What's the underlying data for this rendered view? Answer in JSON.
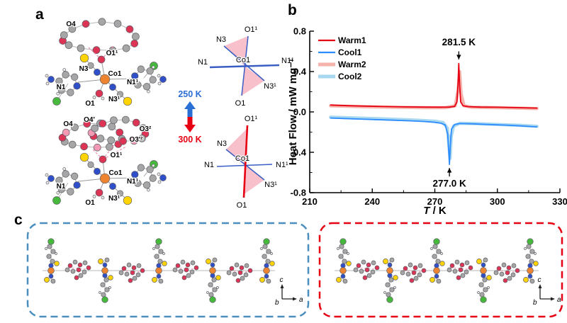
{
  "panel_labels": {
    "a": "a",
    "b": "b",
    "c": "c"
  },
  "panel_a": {
    "temperature_high": "250 K",
    "temperature_low": "300 K",
    "molecule_top": {
      "o4": "O4",
      "o1_top": "O1¹",
      "n3": "N3",
      "co1": "Co1",
      "n1": "N1",
      "n1_sym": "N1¹",
      "n3_sym": "N3¹",
      "o1": "O1"
    },
    "molecule_bottom": {
      "o4": "O4",
      "o4_prime": "O4'",
      "o3_sym": "O3²",
      "o3_prime_sym": "O3'²",
      "o1_top": "O1¹",
      "n1": "N1",
      "co1": "Co1",
      "n1_sym": "N1¹",
      "n3_sym": "N3¹",
      "o1": "O1"
    },
    "scheme_top": {
      "o1_top": "O1¹",
      "n3": "N3",
      "n1": "N1",
      "co1": "Co1",
      "n1_sym": "N1¹",
      "n3_sym": "N3¹",
      "o1": "O1"
    },
    "scheme_bottom": {
      "o1_top": "O1¹",
      "n3": "N3",
      "n1": "N1",
      "co1": "Co1",
      "n1_sym": "N1¹",
      "n3_sym": "N3¹",
      "o1": "O1"
    }
  },
  "chart_data": {
    "type": "line",
    "title": "",
    "xlabel_italic": "T",
    "xlabel_rest": " / K",
    "ylabel": "Heat Flow / mW mg⁻¹",
    "xlim": [
      210,
      330
    ],
    "ylim": [
      -0.8,
      0.8
    ],
    "xticks": [
      210,
      240,
      270,
      300,
      330
    ],
    "yticks": [
      -0.8,
      -0.4,
      0,
      0.4,
      0.8
    ],
    "xminor": [
      225,
      255,
      285,
      315
    ],
    "yminor": [
      -0.6,
      -0.2,
      0.2,
      0.6
    ],
    "legend_position": "top-left",
    "grid": false,
    "series": [
      {
        "name": "Warm1",
        "color": "#e60012",
        "lw": 1.8,
        "points": [
          [
            220,
            0.068
          ],
          [
            228,
            0.062
          ],
          [
            235,
            0.058
          ],
          [
            245,
            0.053
          ],
          [
            255,
            0.05
          ],
          [
            265,
            0.048
          ],
          [
            272,
            0.047
          ],
          [
            277,
            0.048
          ],
          [
            279.5,
            0.055
          ],
          [
            280.6,
            0.1
          ],
          [
            281.1,
            0.27
          ],
          [
            281.5,
            0.48
          ],
          [
            281.9,
            0.27
          ],
          [
            282.4,
            0.1
          ],
          [
            283.5,
            0.062
          ],
          [
            286,
            0.052
          ],
          [
            292,
            0.048
          ],
          [
            300,
            0.046
          ],
          [
            310,
            0.042
          ],
          [
            319,
            0.038
          ]
        ]
      },
      {
        "name": "Cool1",
        "color": "#2d8cff",
        "lw": 1.8,
        "points": [
          [
            220,
            -0.06
          ],
          [
            230,
            -0.068
          ],
          [
            240,
            -0.075
          ],
          [
            250,
            -0.082
          ],
          [
            258,
            -0.088
          ],
          [
            265,
            -0.095
          ],
          [
            270,
            -0.103
          ],
          [
            273,
            -0.112
          ],
          [
            275,
            -0.13
          ],
          [
            276.2,
            -0.22
          ],
          [
            276.7,
            -0.4
          ],
          [
            277,
            -0.52
          ],
          [
            277.4,
            -0.34
          ],
          [
            278,
            -0.17
          ],
          [
            279.5,
            -0.125
          ],
          [
            282,
            -0.115
          ],
          [
            288,
            -0.118
          ],
          [
            295,
            -0.124
          ],
          [
            303,
            -0.13
          ],
          [
            311,
            -0.138
          ],
          [
            319,
            -0.148
          ]
        ]
      },
      {
        "name": "Warm2",
        "color": "#f5b3ab",
        "lw": 4.5,
        "points": [
          [
            220,
            0.06
          ],
          [
            235,
            0.052
          ],
          [
            250,
            0.046
          ],
          [
            265,
            0.042
          ],
          [
            275,
            0.042
          ],
          [
            279.8,
            0.06
          ],
          [
            281.2,
            0.22
          ],
          [
            281.9,
            0.4
          ],
          [
            282.6,
            0.18
          ],
          [
            284,
            0.06
          ],
          [
            288,
            0.046
          ],
          [
            300,
            0.042
          ],
          [
            310,
            0.038
          ],
          [
            319,
            0.034
          ]
        ]
      },
      {
        "name": "Cool2",
        "color": "#a8d8f0",
        "lw": 4.5,
        "points": [
          [
            220,
            -0.052
          ],
          [
            235,
            -0.062
          ],
          [
            250,
            -0.072
          ],
          [
            262,
            -0.082
          ],
          [
            270,
            -0.092
          ],
          [
            274,
            -0.105
          ],
          [
            276,
            -0.16
          ],
          [
            276.8,
            -0.34
          ],
          [
            277.3,
            -0.46
          ],
          [
            277.9,
            -0.24
          ],
          [
            279,
            -0.14
          ],
          [
            282,
            -0.112
          ],
          [
            290,
            -0.116
          ],
          [
            300,
            -0.124
          ],
          [
            310,
            -0.132
          ],
          [
            319,
            -0.142
          ]
        ]
      }
    ],
    "annotations": [
      {
        "text": "281.5 K",
        "x": 281.5,
        "text_v": 0.66,
        "arrow_from_v": 0.6,
        "arrow_to_v": 0.52,
        "dir": "down"
      },
      {
        "text": "277.0 K",
        "x": 277.0,
        "text_v": -0.74,
        "arrow_from_v": -0.64,
        "arrow_to_v": -0.555,
        "dir": "up"
      }
    ]
  },
  "panel_c": {
    "axes": {
      "c": "c",
      "a": "a",
      "b": "b"
    },
    "box_left_color": "#4a8fc0",
    "box_right_color": "#e60012"
  },
  "colors": {
    "warm_accent": "#e60012",
    "cool_accent": "#2a6fd4"
  }
}
